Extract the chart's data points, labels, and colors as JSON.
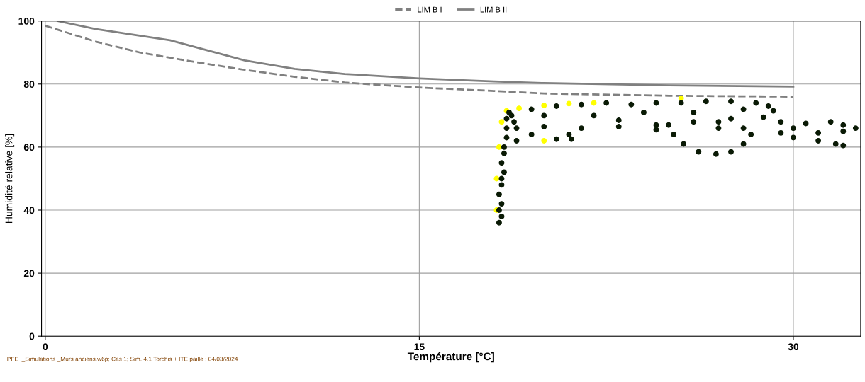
{
  "chart_data": {
    "type": "scatter",
    "xlabel": "Température [°C]",
    "ylabel": "Humidité relative [%]",
    "xlim": [
      -0.15,
      32.7
    ],
    "ylim": [
      0,
      100
    ],
    "xticks": [
      0,
      15,
      30
    ],
    "yticks": [
      0,
      20,
      40,
      60,
      80,
      100
    ],
    "grid": true,
    "legend": "top",
    "marker": "circle",
    "annotations": [
      "PFE I_Simulations _Murs anciens.w6p; Cas 1; Sim. 4.1 Torchis + ITE paille ; 04/03/2024"
    ],
    "series": [
      {
        "name": "LIM B I",
        "type": "line",
        "marker": "none",
        "line_style": "dashed",
        "color": "#808080",
        "x": [
          0,
          1,
          2,
          3.8,
          6,
          8,
          10,
          12,
          15,
          18,
          20,
          25,
          30
        ],
        "values": [
          98.5,
          96,
          93.5,
          90,
          87,
          84.5,
          82.3,
          80.5,
          78.9,
          77.8,
          77,
          76.3,
          76
        ]
      },
      {
        "name": "LIM B II",
        "type": "line",
        "marker": "none",
        "line_style": "solid",
        "color": "#808080",
        "x": [
          0.5,
          2,
          5,
          8,
          10,
          12,
          15,
          18,
          20,
          25,
          30
        ],
        "values": [
          100,
          97.5,
          93.9,
          87.5,
          84.8,
          83.2,
          81.8,
          80.8,
          80.3,
          79.6,
          79.2
        ]
      },
      {
        "color": "#ffff00",
        "x": [
          18.1,
          18.1,
          18.2,
          18.3,
          18.5,
          19,
          20,
          21,
          22,
          20,
          25.5
        ],
        "values": [
          40,
          50,
          60,
          68,
          71.5,
          72.3,
          73.2,
          73.8,
          74,
          62,
          75.5
        ]
      },
      {
        "color": "#0a1a05",
        "x": [
          18.2,
          18.3,
          18.2,
          18.3,
          18.2,
          18.3,
          18.3,
          18.4,
          18.3,
          18.4,
          18.4,
          18.5,
          18.5,
          18.5,
          18.6,
          18.7,
          18.8,
          18.9,
          18.9,
          19.5,
          20.5,
          21.5,
          22.5,
          23.5,
          24.5,
          25.5,
          26.5,
          27.5,
          28.5,
          29,
          29.2,
          28.8,
          27.5,
          26,
          24.5,
          23,
          21.5,
          20,
          19.5,
          20.5,
          21.1,
          21,
          24.5,
          25,
          27,
          28,
          22,
          24,
          26,
          28,
          20,
          23,
          27,
          25.2,
          25.6,
          26.2,
          26.9,
          27.5,
          28,
          28.3,
          29.5,
          30.5,
          31.5,
          32,
          32.5,
          32,
          31,
          30,
          31.7,
          32,
          31,
          30,
          29.5
        ],
        "values": [
          36,
          38,
          40,
          42,
          45,
          48,
          50,
          52,
          55,
          58,
          60,
          63,
          66,
          69,
          71,
          70,
          68,
          66,
          62,
          72,
          73,
          73.5,
          74,
          73.5,
          74,
          74,
          74.5,
          74.5,
          74,
          73,
          71.5,
          69.5,
          69,
          68,
          67,
          66.5,
          66,
          66.5,
          64,
          62.5,
          62.5,
          64,
          65.5,
          67,
          66,
          66,
          70,
          71,
          71,
          72,
          70,
          68.5,
          68,
          64,
          61,
          58.5,
          57.8,
          58.5,
          61,
          64,
          68,
          67.5,
          68,
          67,
          66,
          65,
          64.5,
          66,
          61,
          60.5,
          62,
          63,
          64.5
        ]
      }
    ]
  }
}
